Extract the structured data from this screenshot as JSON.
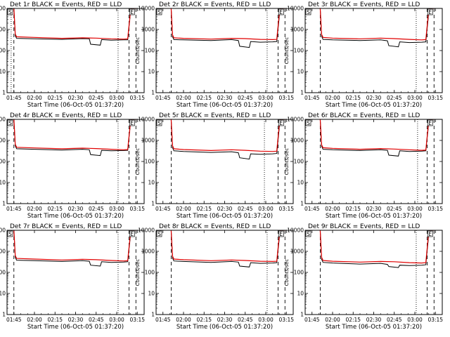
{
  "colors": {
    "events": "#000000",
    "lld": "#e00000",
    "axes": "#000000",
    "background": "#ffffff"
  },
  "shared": {
    "xlabel": "Start Time (06-Oct-05 01:37:20)",
    "ylabel": "Counts/sec",
    "xticks": [
      "01:45",
      "02:00",
      "02:15",
      "02:30",
      "02:45",
      "03:00",
      "03:15"
    ],
    "yticks": [
      "1",
      "10",
      "100",
      "1000",
      "10000"
    ],
    "corner_marks": [
      "S",
      "E"
    ]
  },
  "chart_data": [
    {
      "type": "line",
      "title": "Det 1r BLACK = Events, RED = LLD",
      "xlim": [
        "01:40",
        "03:20"
      ],
      "ylim": [
        1,
        10000
      ],
      "yscale": "log",
      "vlines_dotted": [
        "01:43",
        "03:01"
      ],
      "vlines_dashed": [
        "01:45",
        "03:09",
        "03:14"
      ],
      "series": [
        {
          "name": "Events",
          "x": [
            "01:45",
            "01:46",
            "01:47",
            "02:00",
            "02:20",
            "02:35",
            "02:40",
            "02:41",
            "02:48",
            "02:49",
            "02:56",
            "03:05",
            "03:08",
            "03:10",
            "03:11",
            "03:14"
          ],
          "values": [
            10000,
            500,
            380,
            360,
            340,
            370,
            360,
            200,
            180,
            330,
            310,
            320,
            320,
            6000,
            10000,
            10000
          ]
        },
        {
          "name": "LLD",
          "x": [
            "01:45",
            "01:46",
            "01:47",
            "02:00",
            "02:20",
            "02:35",
            "02:45",
            "02:56",
            "03:05",
            "03:08",
            "03:10",
            "03:11",
            "03:14"
          ],
          "values": [
            10000,
            600,
            450,
            420,
            380,
            400,
            390,
            360,
            350,
            360,
            7000,
            10000,
            10000
          ]
        }
      ]
    },
    {
      "type": "line",
      "title": "Det 2r BLACK = Events, RED = LLD",
      "xlim": [
        "01:40",
        "03:20"
      ],
      "ylim": [
        1,
        10000
      ],
      "yscale": "log",
      "vlines_dotted": [
        "03:01"
      ],
      "vlines_dashed": [
        "01:51",
        "03:09",
        "03:14"
      ],
      "series": [
        {
          "name": "Events",
          "x": [
            "01:51",
            "01:52",
            "01:53",
            "02:00",
            "02:20",
            "02:35",
            "02:40",
            "02:41",
            "02:48",
            "02:49",
            "02:56",
            "03:05",
            "03:08",
            "03:10",
            "03:11",
            "03:14"
          ],
          "values": [
            10000,
            450,
            330,
            320,
            300,
            330,
            300,
            160,
            140,
            270,
            250,
            260,
            270,
            5000,
            10000,
            10000
          ]
        },
        {
          "name": "LLD",
          "x": [
            "01:51",
            "01:52",
            "01:53",
            "02:00",
            "02:20",
            "02:35",
            "02:45",
            "02:56",
            "03:05",
            "03:08",
            "03:10",
            "03:11",
            "03:14"
          ],
          "values": [
            10000,
            550,
            400,
            380,
            350,
            380,
            370,
            340,
            330,
            340,
            7000,
            10000,
            10000
          ]
        }
      ]
    },
    {
      "type": "line",
      "title": "Det 3r BLACK = Events, RED = LLD",
      "xlim": [
        "01:40",
        "03:20"
      ],
      "ylim": [
        1,
        10000
      ],
      "yscale": "log",
      "vlines_dotted": [
        "03:01"
      ],
      "vlines_dashed": [
        "01:51",
        "03:09",
        "03:14"
      ],
      "series": [
        {
          "name": "Events",
          "x": [
            "01:51",
            "01:52",
            "01:53",
            "02:00",
            "02:20",
            "02:35",
            "02:40",
            "02:41",
            "02:48",
            "02:49",
            "02:56",
            "03:05",
            "03:08",
            "03:10",
            "03:11",
            "03:14"
          ],
          "values": [
            10000,
            480,
            340,
            320,
            300,
            320,
            290,
            170,
            150,
            260,
            240,
            250,
            260,
            5000,
            10000,
            10000
          ]
        },
        {
          "name": "LLD",
          "x": [
            "01:51",
            "01:52",
            "01:53",
            "02:00",
            "02:20",
            "02:35",
            "02:45",
            "02:56",
            "03:05",
            "03:08",
            "03:10",
            "03:11",
            "03:14"
          ],
          "values": [
            10000,
            580,
            420,
            390,
            360,
            390,
            370,
            340,
            320,
            330,
            7000,
            10000,
            10000
          ]
        }
      ]
    },
    {
      "type": "line",
      "title": "Det 4r BLACK = Events, RED = LLD",
      "xlim": [
        "01:40",
        "03:20"
      ],
      "ylim": [
        1,
        10000
      ],
      "yscale": "log",
      "vlines_dotted": [
        "03:01"
      ],
      "vlines_dashed": [
        "01:45",
        "03:09",
        "03:14"
      ],
      "series": [
        {
          "name": "Events",
          "x": [
            "01:45",
            "01:46",
            "01:47",
            "02:00",
            "02:20",
            "02:35",
            "02:40",
            "02:41",
            "02:48",
            "02:49",
            "02:56",
            "03:05",
            "03:08",
            "03:10",
            "03:11",
            "03:14"
          ],
          "values": [
            10000,
            550,
            400,
            380,
            350,
            380,
            360,
            210,
            190,
            340,
            320,
            330,
            340,
            6000,
            10000,
            10000
          ]
        },
        {
          "name": "LLD",
          "x": [
            "01:45",
            "01:46",
            "01:47",
            "02:00",
            "02:20",
            "02:35",
            "02:45",
            "02:56",
            "03:05",
            "03:08",
            "03:10",
            "03:11",
            "03:14"
          ],
          "values": [
            10000,
            650,
            470,
            440,
            400,
            430,
            410,
            380,
            360,
            370,
            7000,
            10000,
            10000
          ]
        }
      ]
    },
    {
      "type": "line",
      "title": "Det 5r BLACK = Events, RED = LLD",
      "xlim": [
        "01:40",
        "03:20"
      ],
      "ylim": [
        1,
        10000
      ],
      "yscale": "log",
      "vlines_dotted": [
        "02:59"
      ],
      "vlines_dashed": [
        "01:51",
        "03:09",
        "03:14"
      ],
      "series": [
        {
          "name": "Events",
          "x": [
            "01:51",
            "01:52",
            "01:53",
            "02:00",
            "02:20",
            "02:35",
            "02:40",
            "02:41",
            "02:48",
            "02:49",
            "02:56",
            "03:05",
            "03:08",
            "03:10",
            "03:11",
            "03:14"
          ],
          "values": [
            10000,
            450,
            320,
            300,
            270,
            290,
            260,
            150,
            130,
            230,
            220,
            230,
            240,
            5000,
            10000,
            10000
          ]
        },
        {
          "name": "LLD",
          "x": [
            "01:51",
            "01:52",
            "01:53",
            "02:00",
            "02:20",
            "02:35",
            "02:45",
            "02:56",
            "03:05",
            "03:08",
            "03:10",
            "03:11",
            "03:14"
          ],
          "values": [
            10000,
            560,
            400,
            370,
            330,
            360,
            340,
            310,
            300,
            310,
            7000,
            10000,
            10000
          ]
        }
      ]
    },
    {
      "type": "line",
      "title": "Det 6r BLACK = Events, RED = LLD",
      "xlim": [
        "01:40",
        "03:20"
      ],
      "ylim": [
        1,
        10000
      ],
      "yscale": "log",
      "vlines_dotted": [
        "03:02"
      ],
      "vlines_dashed": [
        "01:51",
        "03:09",
        "03:14"
      ],
      "series": [
        {
          "name": "Events",
          "x": [
            "01:51",
            "01:52",
            "01:53",
            "02:00",
            "02:20",
            "02:35",
            "02:40",
            "02:41",
            "02:48",
            "02:49",
            "02:56",
            "03:05",
            "03:08",
            "03:10",
            "03:11",
            "03:14"
          ],
          "values": [
            10000,
            520,
            380,
            360,
            330,
            360,
            340,
            200,
            180,
            320,
            300,
            310,
            320,
            5500,
            10000,
            10000
          ]
        },
        {
          "name": "LLD",
          "x": [
            "01:51",
            "01:52",
            "01:53",
            "02:00",
            "02:20",
            "02:35",
            "02:45",
            "02:56",
            "03:05",
            "03:08",
            "03:10",
            "03:11",
            "03:14"
          ],
          "values": [
            10000,
            620,
            450,
            420,
            380,
            410,
            390,
            360,
            340,
            350,
            7000,
            10000,
            10000
          ]
        }
      ]
    },
    {
      "type": "line",
      "title": "Det 7r BLACK = Events, RED = LLD",
      "xlim": [
        "01:40",
        "03:20"
      ],
      "ylim": [
        1,
        10000
      ],
      "yscale": "log",
      "vlines_dotted": [
        "03:01"
      ],
      "vlines_dashed": [
        "01:45",
        "03:09",
        "03:14"
      ],
      "series": [
        {
          "name": "Events",
          "x": [
            "01:45",
            "01:46",
            "01:47",
            "02:00",
            "02:20",
            "02:35",
            "02:40",
            "02:41",
            "02:48",
            "02:49",
            "02:56",
            "03:05",
            "03:08",
            "03:10",
            "03:11",
            "03:14"
          ],
          "values": [
            10000,
            520,
            380,
            360,
            330,
            360,
            340,
            220,
            200,
            320,
            300,
            310,
            320,
            5500,
            10000,
            10000
          ]
        },
        {
          "name": "LLD",
          "x": [
            "01:45",
            "01:46",
            "01:47",
            "02:00",
            "02:20",
            "02:35",
            "02:45",
            "02:56",
            "03:05",
            "03:08",
            "03:10",
            "03:11",
            "03:14"
          ],
          "values": [
            10000,
            630,
            460,
            430,
            390,
            420,
            400,
            370,
            350,
            360,
            7000,
            10000,
            10000
          ]
        }
      ]
    },
    {
      "type": "line",
      "title": "Det 8r BLACK = Events, RED = LLD",
      "xlim": [
        "01:40",
        "03:20"
      ],
      "ylim": [
        1,
        10000
      ],
      "yscale": "log",
      "vlines_dotted": [
        "03:01"
      ],
      "vlines_dashed": [
        "01:51",
        "03:09",
        "03:14"
      ],
      "series": [
        {
          "name": "Events",
          "x": [
            "01:51",
            "01:52",
            "01:53",
            "02:00",
            "02:20",
            "02:35",
            "02:40",
            "02:41",
            "02:48",
            "02:49",
            "02:56",
            "03:05",
            "03:08",
            "03:10",
            "03:11",
            "03:14"
          ],
          "values": [
            10000,
            480,
            350,
            330,
            300,
            330,
            310,
            200,
            180,
            290,
            270,
            280,
            290,
            5000,
            10000,
            10000
          ]
        },
        {
          "name": "LLD",
          "x": [
            "01:51",
            "01:52",
            "01:53",
            "02:00",
            "02:20",
            "02:35",
            "02:45",
            "02:56",
            "03:05",
            "03:08",
            "03:10",
            "03:11",
            "03:14"
          ],
          "values": [
            10000,
            590,
            430,
            400,
            360,
            390,
            370,
            340,
            330,
            340,
            7000,
            10000,
            10000
          ]
        }
      ]
    },
    {
      "type": "line",
      "title": "Det 9r BLACK = Events, RED = LLD",
      "xlim": [
        "01:40",
        "03:20"
      ],
      "ylim": [
        1,
        10000
      ],
      "yscale": "log",
      "vlines_dotted": [
        "03:01"
      ],
      "vlines_dashed": [
        "01:51",
        "03:09",
        "03:14"
      ],
      "series": [
        {
          "name": "Events",
          "x": [
            "01:51",
            "01:52",
            "01:53",
            "02:00",
            "02:20",
            "02:35",
            "02:40",
            "02:41",
            "02:48",
            "02:49",
            "02:56",
            "03:05",
            "03:08",
            "03:10",
            "03:11",
            "03:14"
          ],
          "values": [
            10000,
            420,
            300,
            280,
            250,
            270,
            240,
            190,
            170,
            220,
            210,
            220,
            230,
            5000,
            10000,
            10000
          ]
        },
        {
          "name": "LLD",
          "x": [
            "01:51",
            "01:52",
            "01:53",
            "02:00",
            "02:20",
            "02:35",
            "02:45",
            "02:56",
            "03:05",
            "03:08",
            "03:10",
            "03:11",
            "03:14"
          ],
          "values": [
            10000,
            520,
            370,
            340,
            310,
            330,
            320,
            290,
            280,
            290,
            7000,
            10000,
            10000
          ]
        }
      ]
    }
  ]
}
